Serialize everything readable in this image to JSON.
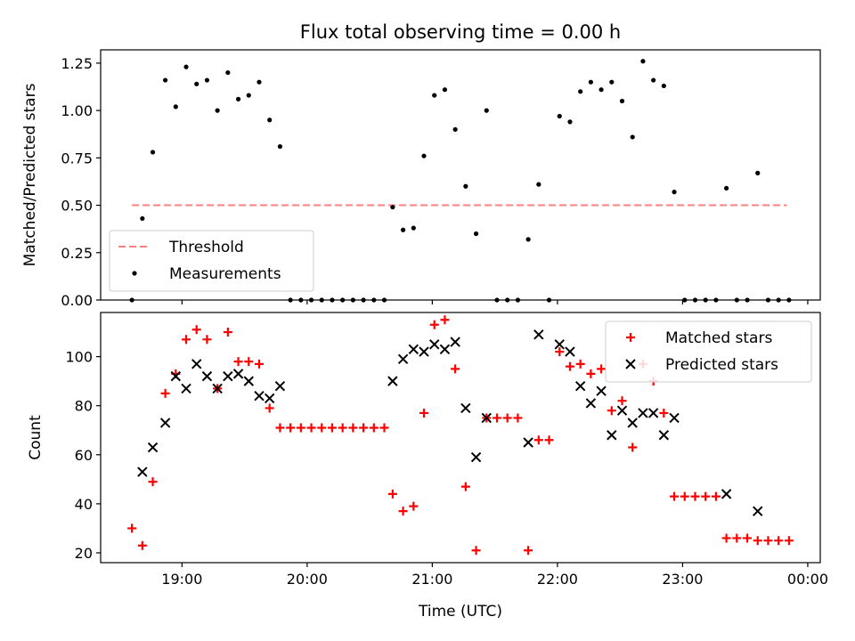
{
  "chart_data": [
    {
      "type": "scatter",
      "title": "Flux total observing time = 0.00 h",
      "xlabel": "",
      "ylabel": "Matched/Predicted stars",
      "xlim": [
        "18:21",
        "00:06"
      ],
      "ylim": [
        0,
        1.32
      ],
      "yticks": [
        "0.00",
        "0.25",
        "0.50",
        "0.75",
        "1.00",
        "1.25"
      ],
      "grid": false,
      "legend_position": "lower-left",
      "legend": [
        "Threshold",
        "Measurements"
      ],
      "series": [
        {
          "name": "Threshold",
          "kind": "line",
          "color": "#ff7f7f",
          "points": [
            [
              "18:36",
              0.5
            ],
            [
              "23:50",
              0.5
            ]
          ]
        },
        {
          "name": "Measurements",
          "kind": "scatter",
          "color": "#000000",
          "points": [
            [
              "18:36",
              0.0
            ],
            [
              "18:41",
              0.43
            ],
            [
              "18:46",
              0.78
            ],
            [
              "18:52",
              1.16
            ],
            [
              "18:57",
              1.02
            ],
            [
              "19:02",
              1.23
            ],
            [
              "19:07",
              1.14
            ],
            [
              "19:12",
              1.16
            ],
            [
              "19:17",
              1.0
            ],
            [
              "19:22",
              1.2
            ],
            [
              "19:27",
              1.06
            ],
            [
              "19:32",
              1.08
            ],
            [
              "19:37",
              1.15
            ],
            [
              "19:42",
              0.95
            ],
            [
              "19:47",
              0.81
            ],
            [
              "19:52",
              0.0
            ],
            [
              "19:57",
              0.0
            ],
            [
              "20:02",
              0.0
            ],
            [
              "20:07",
              0.0
            ],
            [
              "20:12",
              0.0
            ],
            [
              "20:17",
              0.0
            ],
            [
              "20:22",
              0.0
            ],
            [
              "20:27",
              0.0
            ],
            [
              "20:32",
              0.0
            ],
            [
              "20:37",
              0.0
            ],
            [
              "20:41",
              0.49
            ],
            [
              "20:46",
              0.37
            ],
            [
              "20:51",
              0.38
            ],
            [
              "20:56",
              0.76
            ],
            [
              "21:01",
              1.08
            ],
            [
              "21:06",
              1.11
            ],
            [
              "21:11",
              0.9
            ],
            [
              "21:16",
              0.6
            ],
            [
              "21:21",
              0.35
            ],
            [
              "21:26",
              1.0
            ],
            [
              "21:31",
              0.0
            ],
            [
              "21:36",
              0.0
            ],
            [
              "21:41",
              0.0
            ],
            [
              "21:46",
              0.32
            ],
            [
              "21:51",
              0.61
            ],
            [
              "21:56",
              0.0
            ],
            [
              "22:01",
              0.97
            ],
            [
              "22:06",
              0.94
            ],
            [
              "22:11",
              1.1
            ],
            [
              "22:16",
              1.15
            ],
            [
              "22:21",
              1.11
            ],
            [
              "22:26",
              1.15
            ],
            [
              "22:31",
              1.05
            ],
            [
              "22:36",
              0.86
            ],
            [
              "22:41",
              1.26
            ],
            [
              "22:46",
              1.16
            ],
            [
              "22:51",
              1.13
            ],
            [
              "22:56",
              0.57
            ],
            [
              "23:01",
              0.0
            ],
            [
              "23:06",
              0.0
            ],
            [
              "23:11",
              0.0
            ],
            [
              "23:16",
              0.0
            ],
            [
              "23:21",
              0.59
            ],
            [
              "23:26",
              0.0
            ],
            [
              "23:31",
              0.0
            ],
            [
              "23:36",
              0.67
            ],
            [
              "23:41",
              0.0
            ],
            [
              "23:46",
              0.0
            ],
            [
              "23:51",
              0.0
            ]
          ]
        }
      ]
    },
    {
      "type": "scatter",
      "title": "",
      "xlabel": "Time (UTC)",
      "ylabel": "Count",
      "xlim": [
        "18:21",
        "00:06"
      ],
      "ylim": [
        16,
        118
      ],
      "xticks": [
        "19:00",
        "20:00",
        "21:00",
        "22:00",
        "23:00",
        "00:00"
      ],
      "yticks": [
        "20",
        "40",
        "60",
        "80",
        "100"
      ],
      "grid": false,
      "legend_position": "top-right",
      "legend": [
        "Matched stars",
        "Predicted stars"
      ],
      "series": [
        {
          "name": "Matched stars",
          "marker": "+",
          "color": "#ff0000",
          "points": [
            [
              "18:36",
              30
            ],
            [
              "18:41",
              23
            ],
            [
              "18:46",
              49
            ],
            [
              "18:52",
              85
            ],
            [
              "18:57",
              93
            ],
            [
              "19:02",
              107
            ],
            [
              "19:07",
              111
            ],
            [
              "19:12",
              107
            ],
            [
              "19:17",
              87
            ],
            [
              "19:22",
              110
            ],
            [
              "19:27",
              98
            ],
            [
              "19:32",
              98
            ],
            [
              "19:37",
              97
            ],
            [
              "19:42",
              79
            ],
            [
              "19:47",
              71
            ],
            [
              "19:52",
              71
            ],
            [
              "19:57",
              71
            ],
            [
              "20:02",
              71
            ],
            [
              "20:07",
              71
            ],
            [
              "20:12",
              71
            ],
            [
              "20:17",
              71
            ],
            [
              "20:22",
              71
            ],
            [
              "20:27",
              71
            ],
            [
              "20:32",
              71
            ],
            [
              "20:37",
              71
            ],
            [
              "20:41",
              44
            ],
            [
              "20:46",
              37
            ],
            [
              "20:51",
              39
            ],
            [
              "20:56",
              77
            ],
            [
              "21:01",
              113
            ],
            [
              "21:06",
              115
            ],
            [
              "21:11",
              95
            ],
            [
              "21:16",
              47
            ],
            [
              "21:21",
              21
            ],
            [
              "21:26",
              75
            ],
            [
              "21:31",
              75
            ],
            [
              "21:36",
              75
            ],
            [
              "21:41",
              75
            ],
            [
              "21:46",
              21
            ],
            [
              "21:51",
              66
            ],
            [
              "21:56",
              66
            ],
            [
              "22:01",
              102
            ],
            [
              "22:06",
              96
            ],
            [
              "22:11",
              97
            ],
            [
              "22:16",
              93
            ],
            [
              "22:21",
              95
            ],
            [
              "22:26",
              78
            ],
            [
              "22:31",
              82
            ],
            [
              "22:36",
              63
            ],
            [
              "22:41",
              97
            ],
            [
              "22:46",
              90
            ],
            [
              "22:51",
              77
            ],
            [
              "22:56",
              43
            ],
            [
              "23:01",
              43
            ],
            [
              "23:06",
              43
            ],
            [
              "23:11",
              43
            ],
            [
              "23:16",
              43
            ],
            [
              "23:21",
              26
            ],
            [
              "23:26",
              26
            ],
            [
              "23:31",
              26
            ],
            [
              "23:36",
              25
            ],
            [
              "23:41",
              25
            ],
            [
              "23:46",
              25
            ],
            [
              "23:51",
              25
            ]
          ]
        },
        {
          "name": "Predicted stars",
          "marker": "x",
          "color": "#000000",
          "points": [
            [
              "18:41",
              53
            ],
            [
              "18:46",
              63
            ],
            [
              "18:52",
              73
            ],
            [
              "18:57",
              92
            ],
            [
              "19:02",
              87
            ],
            [
              "19:07",
              97
            ],
            [
              "19:12",
              92
            ],
            [
              "19:17",
              87
            ],
            [
              "19:22",
              92
            ],
            [
              "19:27",
              93
            ],
            [
              "19:32",
              90
            ],
            [
              "19:37",
              84
            ],
            [
              "19:42",
              83
            ],
            [
              "19:47",
              88
            ],
            [
              "20:41",
              90
            ],
            [
              "20:46",
              99
            ],
            [
              "20:51",
              103
            ],
            [
              "20:56",
              102
            ],
            [
              "21:01",
              105
            ],
            [
              "21:06",
              103
            ],
            [
              "21:11",
              106
            ],
            [
              "21:16",
              79
            ],
            [
              "21:21",
              59
            ],
            [
              "21:26",
              75
            ],
            [
              "21:46",
              65
            ],
            [
              "21:51",
              109
            ],
            [
              "22:01",
              105
            ],
            [
              "22:06",
              102
            ],
            [
              "22:11",
              88
            ],
            [
              "22:16",
              81
            ],
            [
              "22:21",
              86
            ],
            [
              "22:26",
              68
            ],
            [
              "22:31",
              78
            ],
            [
              "22:36",
              73
            ],
            [
              "22:41",
              77
            ],
            [
              "22:46",
              77
            ],
            [
              "22:51",
              68
            ],
            [
              "22:56",
              75
            ],
            [
              "23:21",
              44
            ],
            [
              "23:36",
              37
            ]
          ]
        }
      ]
    }
  ]
}
